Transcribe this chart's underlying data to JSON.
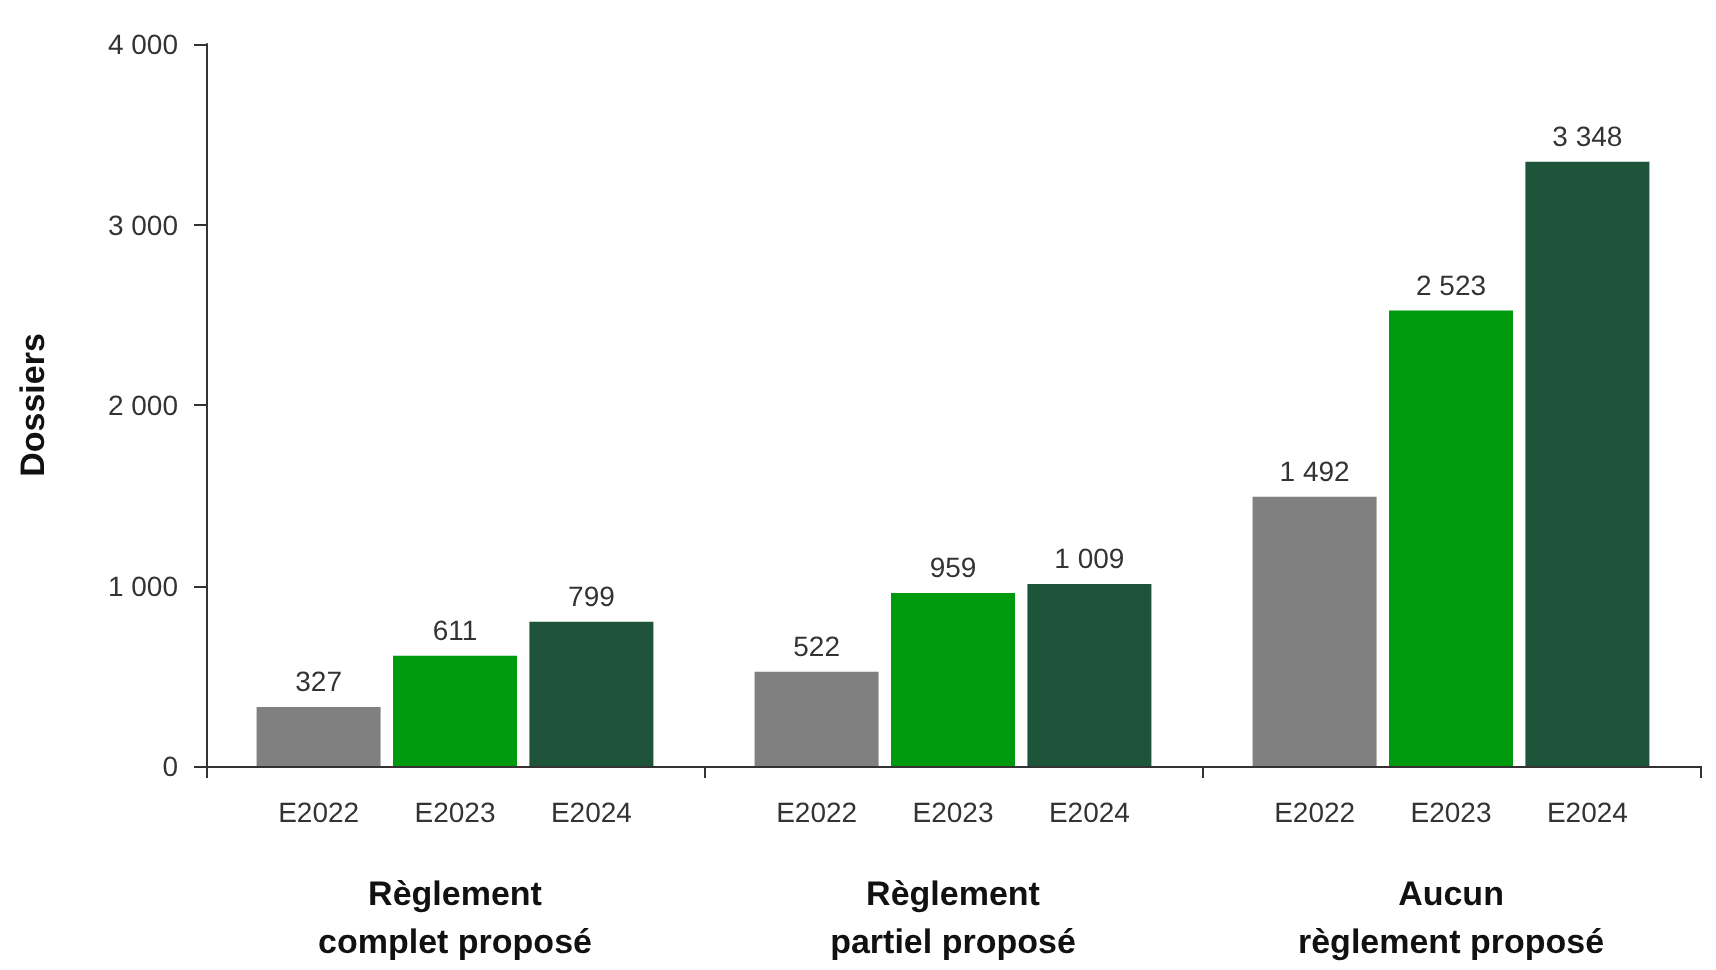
{
  "chart_data": {
    "type": "bar",
    "ylabel": "Dossiers",
    "categories": [
      "Règlement\ncomplet proposé",
      "Règlement\npartiel proposé",
      "Aucun\nrèglement proposé"
    ],
    "series": [
      {
        "name": "E2022",
        "color": "#808080",
        "values": [
          327,
          522,
          1492
        ]
      },
      {
        "name": "E2023",
        "color": "#009a0e",
        "values": [
          611,
          959,
          2523
        ]
      },
      {
        "name": "E2024",
        "color": "#1e5439",
        "values": [
          799,
          1009,
          3348
        ]
      }
    ],
    "ylim": [
      0,
      4000
    ],
    "yticks": [
      0,
      1000,
      2000,
      3000,
      4000
    ],
    "grid": false,
    "legend": false,
    "data_labels": true
  }
}
